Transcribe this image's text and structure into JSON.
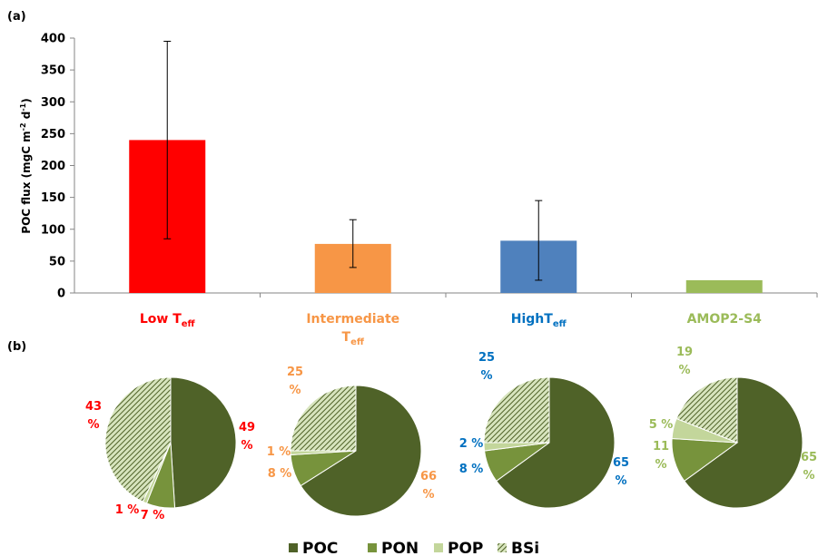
{
  "panel_a_label": "(a)",
  "panel_b_label": "(b)",
  "colors": {
    "poc": "#4f6228",
    "pon": "#77933c",
    "pop": "#c3d69b",
    "bsi_bg": "#d7e4bd",
    "bsi_stripe": "#4f6228",
    "low": "#ff0000",
    "intermediate": "#f79646",
    "high": "#4f81bd",
    "amop": "#9bbb59",
    "label_high": "#0070c0"
  },
  "chart_data": [
    {
      "type": "bar",
      "title": "",
      "xlabel": "",
      "ylabel": "POC flux (mgC m-2 d-1)",
      "ylabel_parts": {
        "main": "POC flux (mgC m",
        "sup1": "-2",
        "mid": " d",
        "sup2": "-1",
        "end": ")"
      },
      "ylim": [
        0,
        400
      ],
      "yticks": [
        0,
        50,
        100,
        150,
        200,
        250,
        300,
        350,
        400
      ],
      "categories": [
        "Low Teff",
        "Intermediate Teff",
        "HighTeff",
        "AMOP2-S4"
      ],
      "category_labels": [
        {
          "lines": [
            [
              "Low T",
              "eff"
            ]
          ],
          "color": "#ff0000"
        },
        {
          "lines": [
            [
              "Intermediate",
              ""
            ],
            [
              "T",
              "eff"
            ]
          ],
          "color": "#f79646"
        },
        {
          "lines": [
            [
              "HighT",
              "eff"
            ]
          ],
          "color": "#0070c0"
        },
        {
          "lines": [
            [
              "AMOP2-S4",
              ""
            ]
          ],
          "color": "#9bbb59"
        }
      ],
      "values": [
        240,
        77,
        82,
        20
      ],
      "error_low": [
        85,
        40,
        20,
        null
      ],
      "error_high": [
        395,
        115,
        145,
        null
      ],
      "bar_colors": [
        "#ff0000",
        "#f79646",
        "#4f81bd",
        "#9bbb59"
      ],
      "grid": false
    },
    {
      "type": "pie",
      "legend": [
        "POC",
        "PON",
        "POP",
        "BSi"
      ],
      "legend_position": "bottom",
      "pies": [
        {
          "category": "Low Teff",
          "values": [
            49,
            7,
            1,
            43
          ],
          "labels": [
            "49 %",
            "7 %",
            "1 %",
            "43 %"
          ],
          "label_color": "#ff0000"
        },
        {
          "category": "Intermediate Teff",
          "values": [
            66,
            8,
            1,
            25
          ],
          "labels": [
            "66 %",
            "8 %",
            "1 %",
            "25 %"
          ],
          "label_color": "#f79646"
        },
        {
          "category": "HighTeff",
          "values": [
            65,
            8,
            2,
            25
          ],
          "labels": [
            "65 %",
            "8 %",
            "2 %",
            "25 %"
          ],
          "label_color": "#0070c0"
        },
        {
          "category": "AMOP2-S4",
          "values": [
            65,
            11,
            5,
            19
          ],
          "labels": [
            "65 %",
            "11 %",
            "5 %",
            "19 %"
          ],
          "label_color": "#9bbb59"
        }
      ]
    }
  ]
}
